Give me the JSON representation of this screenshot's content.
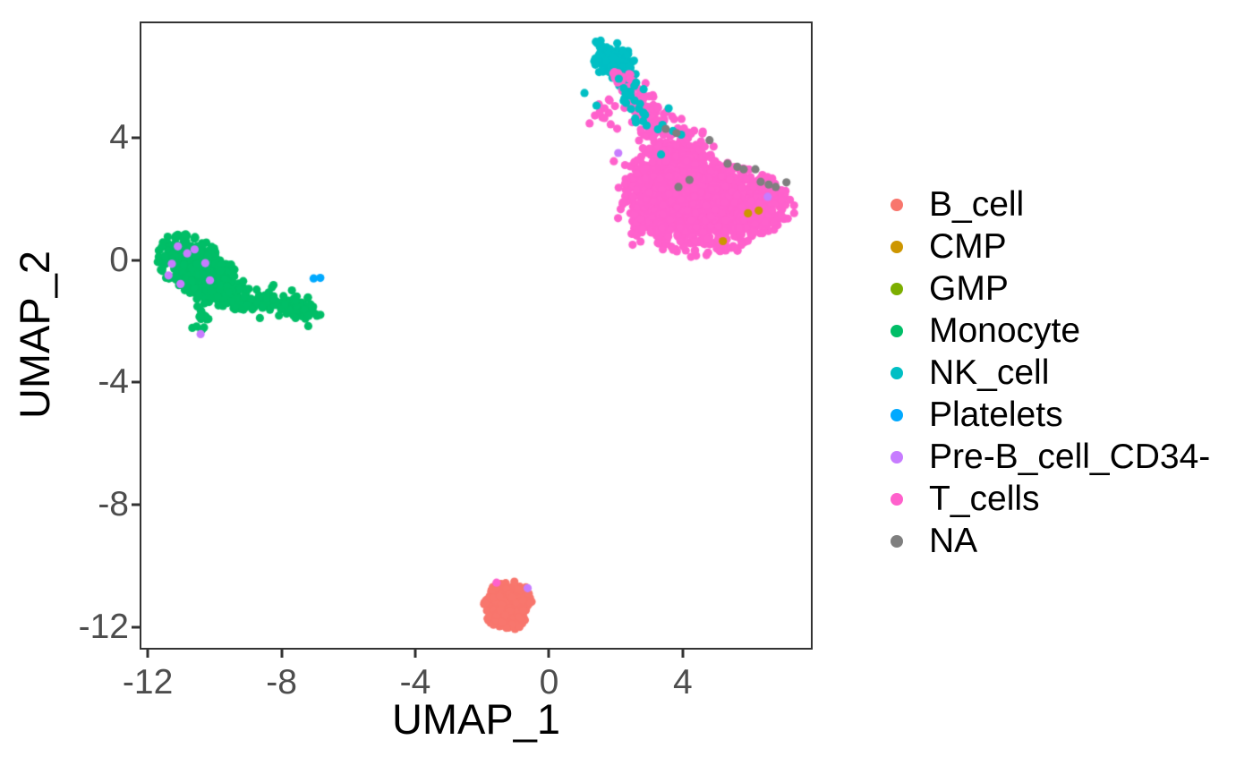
{
  "colors": {
    "background": "#FFFFFF",
    "panel_border": "#333333",
    "axis_text": "#4D4D4D",
    "axis_title": "#000000",
    "legend_text": "#000000"
  },
  "legend": {
    "position": "right",
    "items": [
      {
        "label": "B_cell",
        "color": "#F8766D"
      },
      {
        "label": "CMP",
        "color": "#CD9600"
      },
      {
        "label": "GMP",
        "color": "#7CAE00"
      },
      {
        "label": "Monocyte",
        "color": "#00BE67"
      },
      {
        "label": "NK_cell",
        "color": "#00BFC4"
      },
      {
        "label": "Platelets",
        "color": "#00A9FF"
      },
      {
        "label": "Pre-B_cell_CD34-",
        "color": "#C77CFF"
      },
      {
        "label": "T_cells",
        "color": "#FF61CC"
      },
      {
        "label": "NA",
        "color": "#7F7F7F"
      }
    ]
  },
  "chart_data": {
    "type": "scatter",
    "title": "",
    "xlabel": "UMAP_1",
    "ylabel": "UMAP_2",
    "xlim": [
      -12.19,
      7.83
    ],
    "ylim": [
      -12.67,
      7.74
    ],
    "x_ticks": [
      -12,
      -8,
      -4,
      0,
      4
    ],
    "y_ticks": [
      4,
      0,
      -4,
      -8,
      -12
    ],
    "grid": false,
    "legend_position": "right",
    "point_radius_px": 4.6,
    "series": [
      {
        "name": "B_cell",
        "color": "#F8766D",
        "clusters": [
          {
            "kind": "blob",
            "cx": -1.22,
            "cy": -11.3,
            "sx": 0.34,
            "sy": 0.36,
            "rot": 0,
            "n": 400,
            "clip": 2.3,
            "z": 0
          }
        ],
        "point_groups": []
      },
      {
        "name": "GMP",
        "color": "#7CAE00",
        "clusters": [],
        "point_groups": []
      },
      {
        "name": "Monocyte",
        "color": "#00BE67",
        "clusters": [
          {
            "kind": "blob",
            "cx": -10.55,
            "cy": -0.2,
            "sx": 0.6,
            "sy": 0.42,
            "rot": -38,
            "n": 430,
            "clip": 2.2,
            "z": 0
          },
          {
            "kind": "blob",
            "cx": -9.95,
            "cy": -0.8,
            "sx": 0.45,
            "sy": 0.35,
            "rot": -30,
            "n": 190,
            "clip": 2.2,
            "z": 0
          },
          {
            "kind": "band",
            "x1": -9.6,
            "y1": -1.3,
            "x2": -6.92,
            "y2": -1.62,
            "s1": 0.16,
            "s2": 0.18,
            "n": 120,
            "z": 0
          },
          {
            "kind": "band",
            "x1": -9.0,
            "y1": -1.05,
            "x2": -7.6,
            "y2": -1.45,
            "s1": 0.3,
            "s2": 0.3,
            "n": 25,
            "z": 0
          },
          {
            "kind": "band",
            "x1": -10.32,
            "y1": -1.55,
            "x2": -10.42,
            "y2": -2.3,
            "s1": 0.09,
            "s2": 0.09,
            "n": 16,
            "z": 0
          }
        ],
        "point_groups": []
      },
      {
        "name": "Platelets",
        "color": "#00A9FF",
        "clusters": [],
        "point_groups": [
          {
            "z": 1,
            "points": [
              [
                -7.04,
                -0.6
              ],
              [
                -6.84,
                -0.58
              ]
            ]
          }
        ]
      },
      {
        "name": "NK_cell",
        "color": "#00BFC4",
        "clusters": [
          {
            "kind": "blob",
            "cx": 1.95,
            "cy": 6.45,
            "sx": 0.42,
            "sy": 0.28,
            "rot": -52,
            "n": 135,
            "clip": 2.1,
            "z": 0
          },
          {
            "kind": "band",
            "x1": 2.15,
            "y1": 5.9,
            "x2": 3.3,
            "y2": 4.25,
            "s1": 0.18,
            "s2": 0.25,
            "n": 26,
            "z": 1
          }
        ],
        "point_groups": [
          {
            "z": 1,
            "points": [
              [
                1.06,
                5.46
              ],
              [
                1.42,
                5.05
              ],
              [
                3.95,
                4.1
              ],
              [
                2.6,
                4.5
              ],
              [
                3.35,
                3.45
              ]
            ]
          }
        ]
      },
      {
        "name": "T_cells",
        "color": "#FF61CC",
        "clusters": [
          {
            "kind": "band",
            "x1": 2.15,
            "y1": 6.0,
            "x2": 3.2,
            "y2": 4.4,
            "s1": 0.16,
            "s2": 0.3,
            "n": 90,
            "z": 0
          },
          {
            "kind": "band",
            "x1": 3.2,
            "y1": 4.4,
            "x2": 4.4,
            "y2": 3.1,
            "s1": 0.3,
            "s2": 0.45,
            "n": 130,
            "z": 0
          },
          {
            "kind": "blob",
            "cx": 4.35,
            "cy": 1.75,
            "sx": 1.05,
            "sy": 0.8,
            "rot": -8,
            "n": 950,
            "clip": 2.1,
            "z": 0
          },
          {
            "kind": "blob",
            "cx": 5.7,
            "cy": 1.95,
            "sx": 0.85,
            "sy": 0.55,
            "rot": -12,
            "n": 480,
            "clip": 2.0,
            "z": 0
          },
          {
            "kind": "blob",
            "cx": 3.45,
            "cy": 2.55,
            "sx": 0.6,
            "sy": 0.6,
            "rot": 0,
            "n": 260,
            "clip": 2.0,
            "z": 0
          },
          {
            "kind": "blob",
            "cx": 3.0,
            "cy": 1.3,
            "sx": 0.45,
            "sy": 0.4,
            "rot": 0,
            "n": 60,
            "clip": 2.2,
            "z": 0
          },
          {
            "kind": "blob",
            "cx": 2.9,
            "cy": 3.0,
            "sx": 0.45,
            "sy": 0.55,
            "rot": 0,
            "n": 30,
            "clip": 2.2,
            "z": 0
          },
          {
            "kind": "blob",
            "cx": 1.7,
            "cy": 4.7,
            "sx": 0.35,
            "sy": 0.4,
            "rot": 0,
            "n": 12,
            "clip": 2.0,
            "z": 0
          }
        ],
        "point_groups": [
          {
            "z": 1,
            "points": [
              [
                -1.57,
                -10.54
              ],
              [
                2.5,
                0.5
              ],
              [
                2.62,
                0.8
              ]
            ]
          }
        ]
      },
      {
        "name": "CMP",
        "color": "#CD9600",
        "clusters": [],
        "point_groups": [
          {
            "z": 0,
            "points": [
              [
                6.27,
                1.62
              ],
              [
                5.2,
                0.62
              ]
            ]
          },
          {
            "z": 1,
            "points": [
              [
                5.95,
                1.53
              ]
            ]
          }
        ]
      },
      {
        "name": "Pre-B_cell_CD34-",
        "color": "#C77CFF",
        "clusters": [],
        "point_groups": [
          {
            "z": 1,
            "points": [
              [
                -11.1,
                0.45
              ],
              [
                -10.82,
                0.22
              ],
              [
                -11.28,
                -0.12
              ],
              [
                -11.38,
                -0.5
              ],
              [
                -11.02,
                -0.78
              ],
              [
                -10.6,
                0.35
              ],
              [
                -10.28,
                -0.1
              ],
              [
                -10.14,
                -0.66
              ],
              [
                -10.42,
                -2.42
              ],
              [
                2.07,
                3.5
              ],
              [
                6.54,
                2.07
              ],
              [
                -0.64,
                -10.72
              ]
            ]
          }
        ]
      },
      {
        "name": "NA",
        "color": "#7F7F7F",
        "clusters": [],
        "point_groups": [
          {
            "z": 1,
            "points": [
              [
                3.49,
                4.29
              ],
              [
                3.81,
                4.15
              ],
              [
                4.8,
                3.92
              ],
              [
                5.34,
                3.15
              ],
              [
                5.63,
                3.05
              ],
              [
                5.82,
                2.97
              ],
              [
                6.17,
                2.97
              ],
              [
                6.33,
                2.56
              ],
              [
                6.57,
                2.47
              ],
              [
                6.78,
                2.39
              ],
              [
                7.1,
                2.54
              ],
              [
                3.87,
                2.39
              ],
              [
                4.2,
                2.62
              ]
            ]
          }
        ]
      }
    ]
  }
}
